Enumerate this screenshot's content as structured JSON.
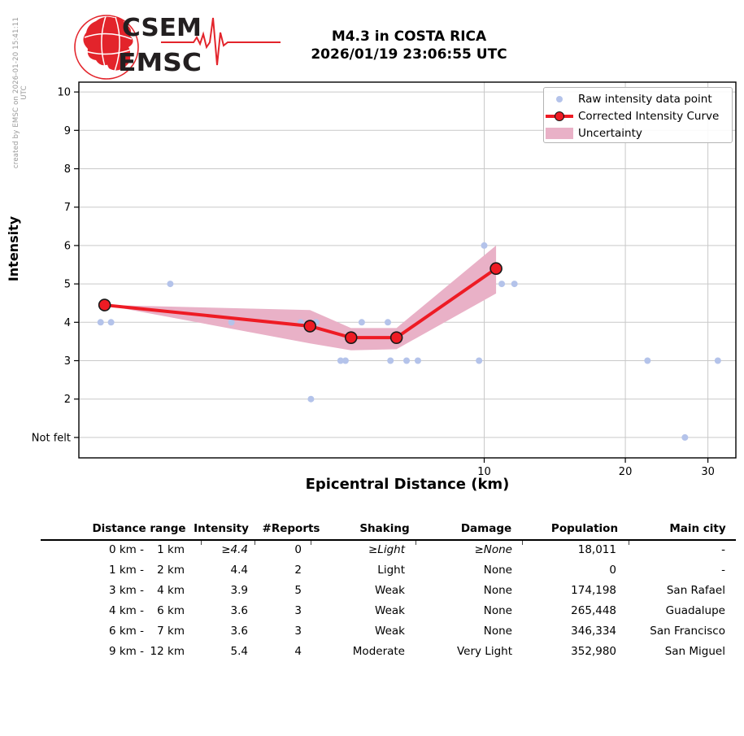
{
  "created_by": "created by EMSC on 2026-01-20 15:41:11 UTC",
  "logo": {
    "line1": "CSEM",
    "line2": "EMSC"
  },
  "title": {
    "line1": "M4.3 in COSTA RICA",
    "line2": "2026/01/19 23:06:55 UTC"
  },
  "chart_data": {
    "type": "scatter",
    "title": "M4.3 in COSTA RICA 2026/01/19 23:06:55 UTC",
    "xlabel": "Epicentral Distance (km)",
    "ylabel": "Intensity",
    "x_scale": "log",
    "x_range_km": [
      1.37,
      34.5
    ],
    "x_ticks": [
      10,
      20,
      30
    ],
    "y_range": [
      0.45,
      10.25
    ],
    "y_ticks": [
      {
        "value": 10,
        "label": "10"
      },
      {
        "value": 9,
        "label": "9"
      },
      {
        "value": 8,
        "label": "8"
      },
      {
        "value": 7,
        "label": "7"
      },
      {
        "value": 6,
        "label": "6"
      },
      {
        "value": 5,
        "label": "5"
      },
      {
        "value": 4,
        "label": "4"
      },
      {
        "value": 3,
        "label": "3"
      },
      {
        "value": 2,
        "label": "2"
      },
      {
        "value": 1,
        "label": "Not felt"
      }
    ],
    "grid": true,
    "legend": {
      "position": "upper right",
      "items": [
        {
          "label": "Raw intensity data point",
          "type": "point"
        },
        {
          "label": "Corrected Intensity Curve",
          "type": "line+marker"
        },
        {
          "label": "Uncertainty",
          "type": "band"
        }
      ]
    },
    "series": {
      "raw_points_km_intensity": [
        [
          1.52,
          4
        ],
        [
          1.6,
          4
        ],
        [
          2.14,
          5
        ],
        [
          2.89,
          4
        ],
        [
          4.06,
          4
        ],
        [
          4.38,
          4
        ],
        [
          5.48,
          4
        ],
        [
          6.23,
          4
        ],
        [
          4.94,
          3
        ],
        [
          5.06,
          3
        ],
        [
          6.31,
          3
        ],
        [
          6.83,
          3
        ],
        [
          7.22,
          3
        ],
        [
          9.75,
          3
        ],
        [
          22.3,
          3
        ],
        [
          31.5,
          3
        ],
        [
          4.27,
          2
        ],
        [
          10.0,
          6
        ],
        [
          10.9,
          5
        ],
        [
          11.6,
          5
        ],
        [
          26.8,
          1
        ]
      ],
      "corrected_curve_km_intensity": [
        [
          1.55,
          4.45
        ],
        [
          4.25,
          3.9
        ],
        [
          5.2,
          3.6
        ],
        [
          6.5,
          3.6
        ],
        [
          10.6,
          5.4
        ]
      ],
      "uncertainty_upper_km_intensity": [
        [
          1.55,
          4.45
        ],
        [
          4.25,
          4.32
        ],
        [
          5.2,
          3.85
        ],
        [
          6.5,
          3.85
        ],
        [
          10.6,
          6.0
        ]
      ],
      "uncertainty_lower_km_intensity": [
        [
          1.55,
          4.45
        ],
        [
          4.25,
          3.45
        ],
        [
          5.2,
          3.27
        ],
        [
          6.5,
          3.3
        ],
        [
          10.6,
          4.75
        ]
      ],
      "note": "intensity value 1 on the axis is rendered as the 'Not felt' level"
    },
    "colors": {
      "raw_point": "#b4c3ea",
      "curve": "#ee1b24",
      "band": "#e9b1c7",
      "grid": "#c9c9c9",
      "logo_red": "#e3242b",
      "logo_text": "#231f20"
    }
  },
  "table": {
    "headers": [
      "Distance range",
      "Intensity",
      "#Reports",
      "Shaking",
      "Damage",
      "Population",
      "Main city"
    ],
    "rows": [
      {
        "range_from": "0 km -",
        "range_to": "1 km",
        "intensity": "≥4.4",
        "reports": "0",
        "shaking": "≥Light",
        "damage": "≥None",
        "population": "18,011",
        "city": "-"
      },
      {
        "range_from": "1 km -",
        "range_to": "2 km",
        "intensity": "4.4",
        "reports": "2",
        "shaking": "Light",
        "damage": "None",
        "population": "0",
        "city": "-"
      },
      {
        "range_from": "3 km -",
        "range_to": "4 km",
        "intensity": "3.9",
        "reports": "5",
        "shaking": "Weak",
        "damage": "None",
        "population": "174,198",
        "city": "San Rafael"
      },
      {
        "range_from": "4 km -",
        "range_to": "6 km",
        "intensity": "3.6",
        "reports": "3",
        "shaking": "Weak",
        "damage": "None",
        "population": "265,448",
        "city": "Guadalupe"
      },
      {
        "range_from": "6 km -",
        "range_to": "7 km",
        "intensity": "3.6",
        "reports": "3",
        "shaking": "Weak",
        "damage": "None",
        "population": "346,334",
        "city": "San Francisco"
      },
      {
        "range_from": "9 km -",
        "range_to": "12 km",
        "intensity": "5.4",
        "reports": "4",
        "shaking": "Moderate",
        "damage": "Very Light",
        "population": "352,980",
        "city": "San Miguel"
      }
    ]
  }
}
